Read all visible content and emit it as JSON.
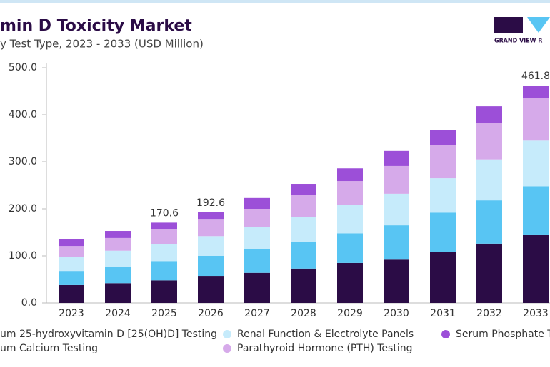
{
  "chart_data": {
    "type": "stacked_bar",
    "title": "min D Toxicity Market",
    "subtitle": "y Test Type, 2023 - 2033 (USD Million)",
    "brand": "GRAND VIEW R",
    "categories": [
      "2023",
      "2024",
      "2025",
      "2026",
      "2027",
      "2028",
      "2029",
      "2030",
      "2031",
      "2032",
      "2033"
    ],
    "series": [
      {
        "name": "um 25-hydroxyvitamin D [25(OH)D] Testing",
        "color": "#2b0c46",
        "values": [
          38,
          42,
          48,
          56,
          64,
          73,
          85,
          92,
          109,
          126,
          144
        ]
      },
      {
        "name": "um Calcium Testing",
        "color": "#58c5f3",
        "values": [
          30,
          35,
          41,
          44,
          50,
          57,
          63,
          73,
          83,
          92,
          104
        ]
      },
      {
        "name": "Renal Function & Electrolyte Panels",
        "color": "#c6ebfb",
        "values": [
          29,
          34,
          36,
          42,
          47,
          52,
          60,
          67,
          73,
          87,
          97
        ]
      },
      {
        "name": "Parathyroid Hormone (PTH) Testing",
        "color": "#d6aaea",
        "values": [
          24,
          27,
          31,
          35,
          39,
          47,
          51,
          59,
          70,
          78,
          91
        ]
      },
      {
        "name": "Serum Phosphate T",
        "color": "#9c4fd8",
        "values": [
          15,
          15,
          14.6,
          15.6,
          23,
          24,
          27,
          32,
          33,
          35,
          25.8
        ]
      }
    ],
    "totals": [
      null,
      null,
      170.6,
      192.6,
      null,
      null,
      null,
      null,
      null,
      null,
      461.8
    ],
    "ylim": [
      0,
      500
    ],
    "yticks": [
      {
        "value": 0,
        "label": "0.0"
      },
      {
        "value": 100,
        "label": "100.0"
      },
      {
        "value": 200,
        "label": "200.0"
      },
      {
        "value": 300,
        "label": "300.0"
      },
      {
        "value": 400,
        "label": "400.0"
      },
      {
        "value": 500,
        "label": "500.0"
      }
    ]
  }
}
